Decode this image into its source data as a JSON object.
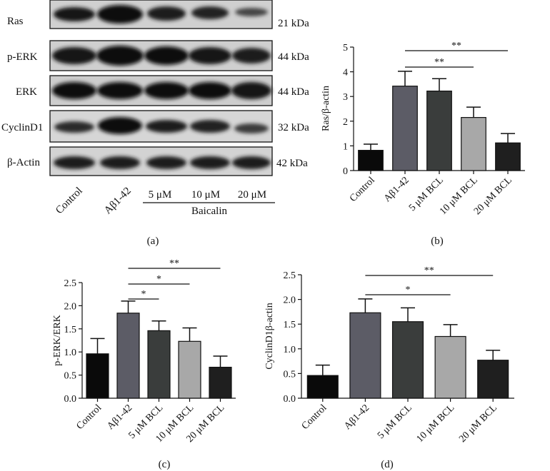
{
  "blot": {
    "rows": [
      {
        "label": "Ras",
        "size": "21 kDa"
      },
      {
        "label": "p-ERK",
        "size": "44 kDa"
      },
      {
        "label": "ERK",
        "size": "44 kDa"
      },
      {
        "label": "CyclinD1",
        "size": "32 kDa"
      },
      {
        "label": "β-Actin",
        "size": "42 kDa"
      }
    ],
    "lanes": [
      "Control",
      "Aβ1-42",
      "5 μM",
      "10 μM",
      "20 μM"
    ],
    "group_label": "Baicalin",
    "panel_label": "(a)"
  },
  "chart_data": [
    {
      "type": "bar",
      "panel_label": "(b)",
      "ylabel": "Ras/β-actin",
      "categories": [
        "Control",
        "Aβ1-42",
        "5 μM BCL",
        "10 μM BCL",
        "20 μM BCL"
      ],
      "values": [
        0.82,
        3.42,
        3.22,
        2.15,
        1.12
      ],
      "errors": [
        0.25,
        0.6,
        0.5,
        0.42,
        0.38
      ],
      "ylim": [
        0,
        5
      ],
      "yticks": [
        "0",
        "1",
        "2",
        "3",
        "4",
        "5"
      ],
      "bar_colors": [
        "#0a0a0a",
        "#5c5c66",
        "#3a3d3c",
        "#a8a8a8",
        "#1f1f1f"
      ],
      "significance": [
        {
          "from": 1,
          "to": 4,
          "label": "**"
        },
        {
          "from": 1,
          "to": 3,
          "label": "**"
        }
      ]
    },
    {
      "type": "bar",
      "panel_label": "(c)",
      "ylabel": "p-ERK/ERK",
      "categories": [
        "Control",
        "Aβ1-42",
        "5 μM BCL",
        "10 μM BCL",
        "20 μM BCL"
      ],
      "values": [
        0.96,
        1.84,
        1.46,
        1.23,
        0.67
      ],
      "errors": [
        0.33,
        0.26,
        0.21,
        0.29,
        0.24
      ],
      "ylim": [
        0,
        2.5
      ],
      "yticks": [
        "0.0",
        "0.5",
        "1.0",
        "1.5",
        "2.0",
        "2.5"
      ],
      "bar_colors": [
        "#0a0a0a",
        "#5c5c66",
        "#3a3d3c",
        "#a8a8a8",
        "#1f1f1f"
      ],
      "significance": [
        {
          "from": 1,
          "to": 4,
          "label": "**"
        },
        {
          "from": 1,
          "to": 3,
          "label": "*"
        },
        {
          "from": 1,
          "to": 2,
          "label": "*"
        }
      ]
    },
    {
      "type": "bar",
      "panel_label": "(d)",
      "ylabel": "CyclinD1β-actin",
      "categories": [
        "Control",
        "Aβ1-42",
        "5 μM BCL",
        "10 μM BCL",
        "20 μM BCL"
      ],
      "values": [
        0.46,
        1.73,
        1.55,
        1.25,
        0.77
      ],
      "errors": [
        0.21,
        0.28,
        0.28,
        0.24,
        0.2
      ],
      "ylim": [
        0,
        2.5
      ],
      "yticks": [
        "0.0",
        "0.5",
        "1.0",
        "1.5",
        "2.0",
        "2.5"
      ],
      "bar_colors": [
        "#0a0a0a",
        "#5c5c66",
        "#3a3d3c",
        "#a8a8a8",
        "#1f1f1f"
      ],
      "significance": [
        {
          "from": 1,
          "to": 4,
          "label": "**"
        },
        {
          "from": 1,
          "to": 3,
          "label": "*"
        }
      ]
    }
  ]
}
